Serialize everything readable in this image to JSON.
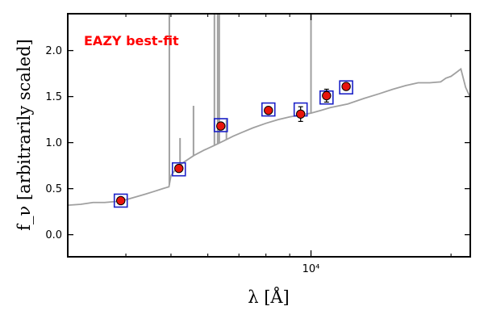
{
  "chart_data": {
    "type": "scatter",
    "xlabel": "λ [Å]",
    "ylabel": "f_ν [arbitrarily scaled]",
    "annotation": "EAZY best-fit",
    "colors": {
      "template": "#a0a0a0",
      "photometry_fill": "#e8140c",
      "photometry_edge": "#000000",
      "model_box": "#1c22c8",
      "annotation": "#ff0000"
    },
    "xscale": "log",
    "xlim": [
      3000,
      22000
    ],
    "ylim": [
      -0.24,
      2.4
    ],
    "yticks": [
      0.0,
      0.5,
      1.0,
      1.5,
      2.0
    ],
    "ytick_labels": [
      "0.0",
      "0.5",
      "1.0",
      "1.5",
      "2.0"
    ],
    "xticks_major": [
      10000
    ],
    "xtick_labels": [
      "10⁴"
    ],
    "xticks_minor": [
      4000,
      5000,
      6000,
      7000,
      8000,
      9000,
      20000
    ],
    "grid": false,
    "series": [
      {
        "type": "line",
        "x": [
          3000,
          3200,
          3400,
          3600,
          3800,
          4000,
          4200,
          4400,
          4600,
          4800,
          4950,
          5000,
          5100,
          5300,
          5600,
          5900,
          6200,
          6500,
          6800,
          7100,
          7500,
          8000,
          8500,
          9000,
          9500,
          10000,
          10500,
          11000,
          12000,
          13000,
          14000,
          15000,
          16000,
          17000,
          18000,
          19000,
          19500,
          20000,
          20500,
          21000,
          21500,
          22000
        ],
        "y": [
          0.32,
          0.33,
          0.35,
          0.35,
          0.36,
          0.38,
          0.41,
          0.44,
          0.47,
          0.5,
          0.52,
          0.64,
          0.7,
          0.78,
          0.86,
          0.92,
          0.97,
          1.02,
          1.07,
          1.11,
          1.16,
          1.21,
          1.25,
          1.28,
          1.3,
          1.32,
          1.35,
          1.38,
          1.42,
          1.48,
          1.53,
          1.58,
          1.62,
          1.65,
          1.65,
          1.66,
          1.7,
          1.72,
          1.76,
          1.8,
          1.6,
          1.49
        ]
      },
      {
        "type": "spikes",
        "x": [
          4960,
          5230,
          5590,
          6200,
          6300,
          6350,
          6580,
          10000
        ],
        "y_top": [
          2.4,
          1.05,
          1.4,
          2.4,
          2.4,
          2.4,
          1.25,
          2.4
        ]
      },
      {
        "type": "model-photometry",
        "x": [
          3900,
          5200,
          6400,
          8100,
          9500,
          10800,
          11900
        ],
        "y": [
          0.37,
          0.71,
          1.19,
          1.36,
          1.36,
          1.49,
          1.6
        ]
      },
      {
        "type": "observed-photometry",
        "x": [
          3900,
          5200,
          6400,
          8100,
          9500,
          10800,
          11900
        ],
        "y": [
          0.37,
          0.72,
          1.18,
          1.35,
          1.31,
          1.51,
          1.61
        ],
        "yerr": [
          0.02,
          0.02,
          0.02,
          0.03,
          0.08,
          0.07,
          0.03
        ]
      }
    ]
  }
}
